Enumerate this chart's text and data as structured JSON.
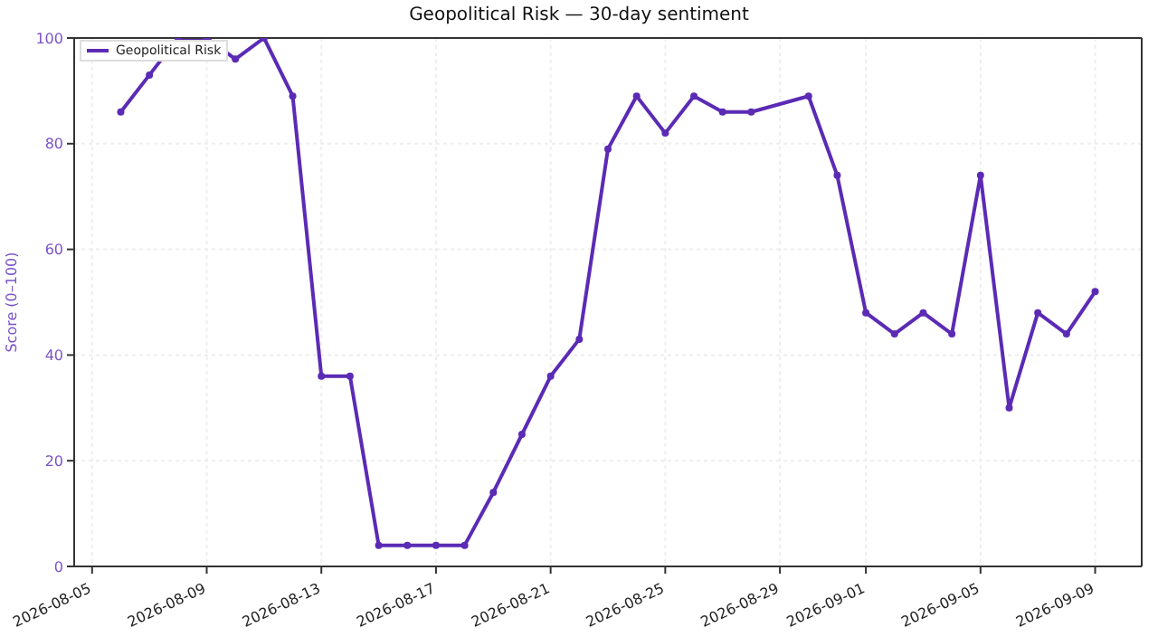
{
  "chart_data": {
    "type": "line",
    "title": "Geopolitical Risk — 30-day sentiment",
    "ylabel": "Score (0–100)",
    "x": [
      "2026-08-06",
      "2026-08-07",
      "2026-08-08",
      "2026-08-09",
      "2026-08-10",
      "2026-08-11",
      "2026-08-12",
      "2026-08-13",
      "2026-08-14",
      "2026-08-15",
      "2026-08-16",
      "2026-08-17",
      "2026-08-18",
      "2026-08-19",
      "2026-08-20",
      "2026-08-21",
      "2026-08-22",
      "2026-08-23",
      "2026-08-24",
      "2026-08-25",
      "2026-08-26",
      "2026-08-27",
      "2026-08-28",
      "2026-08-30",
      "2026-08-31",
      "2026-09-01",
      "2026-09-02",
      "2026-09-03",
      "2026-09-04",
      "2026-09-05",
      "2026-09-06",
      "2026-09-07",
      "2026-09-08",
      "2026-09-09"
    ],
    "series": [
      {
        "name": "Geopolitical Risk",
        "color": "#5b2bb5",
        "values": [
          86,
          93,
          100,
          100,
          96,
          100,
          89,
          36,
          36,
          4,
          4,
          4,
          4,
          14,
          25,
          36,
          43,
          79,
          89,
          82,
          89,
          86,
          86,
          89,
          74,
          48,
          44,
          48,
          44,
          74,
          30,
          48,
          44,
          52
        ]
      }
    ],
    "xlim": [
      "2026-08-04T09:00",
      "2026-09-10T15:00"
    ],
    "xticks": [
      "2026-08-05",
      "2026-08-09",
      "2026-08-13",
      "2026-08-17",
      "2026-08-21",
      "2026-08-25",
      "2026-08-29",
      "2026-09-01",
      "2026-09-05",
      "2026-09-09"
    ],
    "ylim": [
      0,
      100
    ],
    "yticks": [
      0,
      20,
      40,
      60,
      80,
      100
    ],
    "grid": true,
    "legend": "top left",
    "marker": "circle",
    "line_style": "solid"
  }
}
